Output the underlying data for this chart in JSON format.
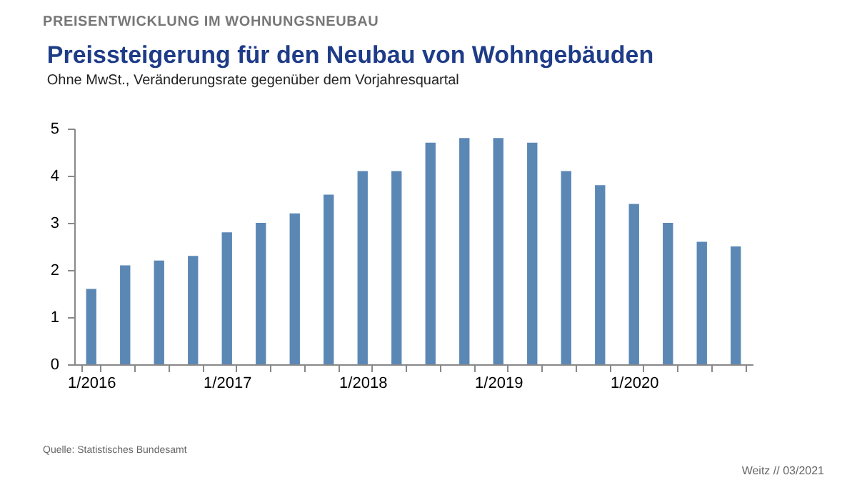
{
  "chart_data": {
    "type": "bar",
    "title": "Preissteigerung für den Neubau von Wohngebäuden",
    "subtitle": "Ohne MwSt., Veränderungsrate gegenüber dem Vorjahresquartal",
    "annotations": [
      "PREISENTWICKLUNG IM WOHNUNGSNEUBAU",
      "Quelle: Statistisches Bundesamt",
      "Weitz // 03/2021"
    ],
    "categories": [
      "1/2016",
      null,
      null,
      null,
      "1/2017",
      null,
      null,
      null,
      "1/2018",
      null,
      null,
      null,
      "1/2019",
      null,
      null,
      null,
      "1/2020",
      null,
      null,
      null
    ],
    "values": [
      1.6,
      2.1,
      2.2,
      2.3,
      2.8,
      3.0,
      3.2,
      3.6,
      4.1,
      4.1,
      4.7,
      4.8,
      4.8,
      4.7,
      4.1,
      3.8,
      3.4,
      3.0,
      2.6,
      2.5
    ],
    "color": "#5b87b5",
    "ylim": [
      0,
      5
    ],
    "yticks": [
      0,
      1,
      2,
      3,
      4,
      5
    ],
    "grid": false
  }
}
